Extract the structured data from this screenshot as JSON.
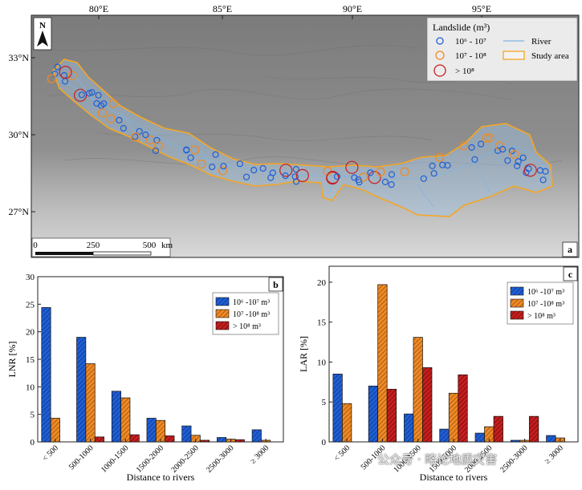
{
  "colors": {
    "blue": "#1f5fd6",
    "orange": "#f08a24",
    "red": "#c81e1e",
    "river": "#7fb3e6",
    "study_area": "#f5a623",
    "terrain_dark": "#6e6e6e",
    "terrain_light": "#d2d2d2"
  },
  "map": {
    "panel_letter": "a",
    "north_label": "N",
    "lon_labels": [
      "80°E",
      "85°E",
      "90°E",
      "95°E"
    ],
    "lat_labels": [
      "33°N",
      "30°N",
      "27°N"
    ],
    "scalebar_labels": [
      "0",
      "250",
      "500",
      "km"
    ],
    "legend": {
      "title": "Landslide (m³)",
      "items": [
        {
          "label": "10⁶ - 10⁷",
          "symbol": "blue-circle"
        },
        {
          "label": "10⁷ - 10⁸",
          "symbol": "orange-circle"
        },
        {
          "label": "> 10⁸",
          "symbol": "red-circle"
        },
        {
          "label": "River",
          "symbol": "river-line"
        },
        {
          "label": "Study area",
          "symbol": "study-area-box"
        }
      ]
    }
  },
  "chart_data": [
    {
      "type": "bar",
      "panel_letter": "b",
      "ylabel": "LNR [%]",
      "xlabel": "Distance to rivers",
      "ylim": [
        0,
        30
      ],
      "yticks": [
        0,
        5,
        10,
        15,
        20,
        25,
        30
      ],
      "categories": [
        "< 500",
        "500-1000",
        "1000-1500",
        "1500-2000",
        "2000-2500",
        "2500-3000",
        "≥ 3000"
      ],
      "series": [
        {
          "name": "10⁶ -10⁷ m³",
          "color": "blue",
          "values": [
            24.4,
            19.0,
            9.2,
            4.3,
            2.9,
            0.8,
            2.2
          ]
        },
        {
          "name": "10⁷ -10⁸ m³",
          "color": "orange",
          "values": [
            4.3,
            14.2,
            8.0,
            3.9,
            1.2,
            0.5,
            0.3
          ]
        },
        {
          "name": "> 10⁸ m³",
          "color": "red",
          "values": [
            0.0,
            0.9,
            1.3,
            1.1,
            0.3,
            0.4,
            0.0
          ]
        }
      ],
      "legend_position": "top-right"
    },
    {
      "type": "bar",
      "panel_letter": "c",
      "ylabel": "LAR [%]",
      "xlabel": "Distance to rivers",
      "ylim": [
        0,
        22
      ],
      "yticks": [
        0,
        5,
        10,
        15,
        20
      ],
      "categories": [
        "< 500",
        "500-1000",
        "1000-1500",
        "1500-2000",
        "2000-2500",
        "2500-3000",
        "≥ 3000"
      ],
      "series": [
        {
          "name": "10⁶ -10⁷ m³",
          "color": "blue",
          "values": [
            8.5,
            7.0,
            3.5,
            1.6,
            1.1,
            0.2,
            0.8
          ]
        },
        {
          "name": "10⁷ -10⁸ m³",
          "color": "orange",
          "values": [
            4.8,
            19.7,
            13.1,
            6.1,
            1.9,
            0.2,
            0.5
          ]
        },
        {
          "name": "> 10⁸ m³",
          "color": "red",
          "values": [
            0.0,
            6.6,
            9.3,
            8.4,
            3.2,
            3.2,
            0.0
          ]
        }
      ],
      "legend_position": "top-right"
    }
  ],
  "watermark": "公众号 · 略论地质灾害"
}
